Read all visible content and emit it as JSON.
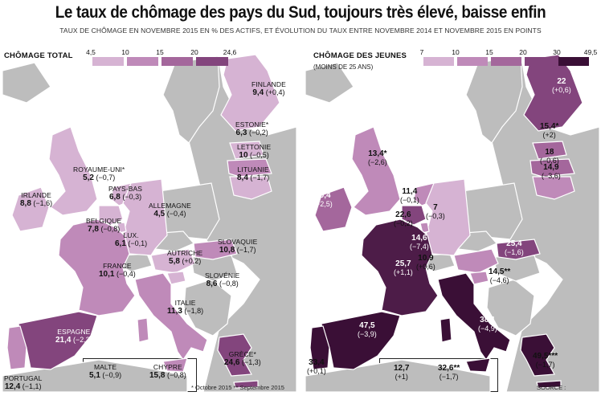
{
  "title": "Le taux de chômage des pays du Sud, toujours très élevé, baisse enfin",
  "subtitle": "TAUX DE CHÔMAGE EN NOVEMBRE 2015 EN % DES ACTIFS, ET ÉVOLUTION DU TAUX ENTRE NOVEMBRE 2014 ET NOVEMBRE 2015 EN POINTS",
  "colors": {
    "sea": "#ffffff",
    "other_land": "#bdbdbd",
    "border": "#ffffff",
    "c1": "#d6b3d3",
    "c2": "#bf8ab9",
    "c3": "#a4679c",
    "c4": "#83457d",
    "c5": "#4d1c48",
    "c6": "#3a0f36"
  },
  "left_map": {
    "legend_title": "CHÔMAGE TOTAL",
    "scale_ticks": [
      "4,5",
      "10",
      "15",
      "20",
      "24,6"
    ],
    "countries": [
      {
        "name": "FINLANDE",
        "value": "9,4",
        "change": "(+0,4)"
      },
      {
        "name": "ESTONIE*",
        "value": "6,3",
        "change": "(−0,2)"
      },
      {
        "name": "LETTONIE",
        "value": "10",
        "change": "(−0,5)"
      },
      {
        "name": "LITUANIE",
        "value": "8,4",
        "change": "(−1,7)"
      },
      {
        "name": "ROYAUME-UNI*",
        "value": "5,2",
        "change": "(−0,7)"
      },
      {
        "name": "IRLANDE",
        "value": "8,8",
        "change": "(−1,6)"
      },
      {
        "name": "PAYS-BAS",
        "value": "6,8",
        "change": "(−0,3)"
      },
      {
        "name": "ALLEMAGNE",
        "value": "4,5",
        "change": "(−0,4)"
      },
      {
        "name": "BELGIQUE",
        "value": "7,8",
        "change": "(−0,8)"
      },
      {
        "name": "LUX.",
        "value": "6,1",
        "change": "(−0,1)"
      },
      {
        "name": "FRANCE",
        "value": "10,1",
        "change": "(−0,4)"
      },
      {
        "name": "AUTRICHE",
        "value": "5,8",
        "change": "(+0,2)"
      },
      {
        "name": "SLOVAQUIE",
        "value": "10,8",
        "change": "(−1,7)"
      },
      {
        "name": "SLOVÉNIE",
        "value": "8,6",
        "change": "(−0,8)"
      },
      {
        "name": "ITALIE",
        "value": "11,3",
        "change": "(−1,8)"
      },
      {
        "name": "ESPAGNE",
        "value": "21,4",
        "change": "(−2,3)"
      },
      {
        "name": "GRÈCE*",
        "value": "24,6",
        "change": "(−1,3)"
      },
      {
        "name": "PORTUGAL",
        "value": "12,4",
        "change": "(−1,1)"
      },
      {
        "name": "MALTE",
        "value": "5,1",
        "change": "(−0,9)"
      },
      {
        "name": "CHYPRE",
        "value": "15,8",
        "change": "(−0,8)"
      }
    ],
    "footnote": "* Octobre 2015  ** Septembre 2015"
  },
  "right_map": {
    "legend_title": "CHÔMAGE DES JEUNES",
    "legend_subtitle": "(MOINS DE 25 ANS)",
    "scale_ticks": [
      "7",
      "10",
      "15",
      "20",
      "30",
      "49,5"
    ],
    "countries": [
      {
        "name": "Finlande",
        "value": "22",
        "change": "(+0,6)"
      },
      {
        "name": "Estonie",
        "value": "15,4*",
        "change": "(+2)"
      },
      {
        "name": "Lettonie",
        "value": "18",
        "change": "(−0,6)"
      },
      {
        "name": "Lituanie",
        "value": "14,9",
        "change": "(−3,6)"
      },
      {
        "name": "Royaume-Uni",
        "value": "13,4*",
        "change": "(−2,6)"
      },
      {
        "name": "Irlande",
        "value": "19,4",
        "change": "(−2,5)"
      },
      {
        "name": "Pays-Bas",
        "value": "11,4",
        "change": "(−0,1)"
      },
      {
        "name": "Allemagne",
        "value": "7",
        "change": "(−0,3)"
      },
      {
        "name": "Belgique",
        "value": "22,6",
        "change": "(−0,2)"
      },
      {
        "name": "Luxembourg",
        "value": "14,6",
        "change": "(−7,4)"
      },
      {
        "name": "France",
        "value": "25,7",
        "change": "(+1,1)"
      },
      {
        "name": "Autriche",
        "value": "10,9",
        "change": "(+0,6)"
      },
      {
        "name": "Slovaquie",
        "value": "25,4",
        "change": "(−1,6)"
      },
      {
        "name": "Slovénie",
        "value": "14,5**",
        "change": "(−4,6)"
      },
      {
        "name": "Italie",
        "value": "38,1",
        "change": "(−4,9)"
      },
      {
        "name": "Espagne",
        "value": "47,5",
        "change": "(−3,9)"
      },
      {
        "name": "Grèce",
        "value": "49,5***",
        "change": "(−1,7)"
      },
      {
        "name": "Portugal",
        "value": "33,4",
        "change": "(+0,1)"
      },
      {
        "name": "Malte",
        "value": "12,7",
        "change": "(+1)"
      },
      {
        "name": "Chypre",
        "value": "32,6**",
        "change": "(−1,7)"
      }
    ],
    "source": "SOURCE : EUROSTAT"
  }
}
